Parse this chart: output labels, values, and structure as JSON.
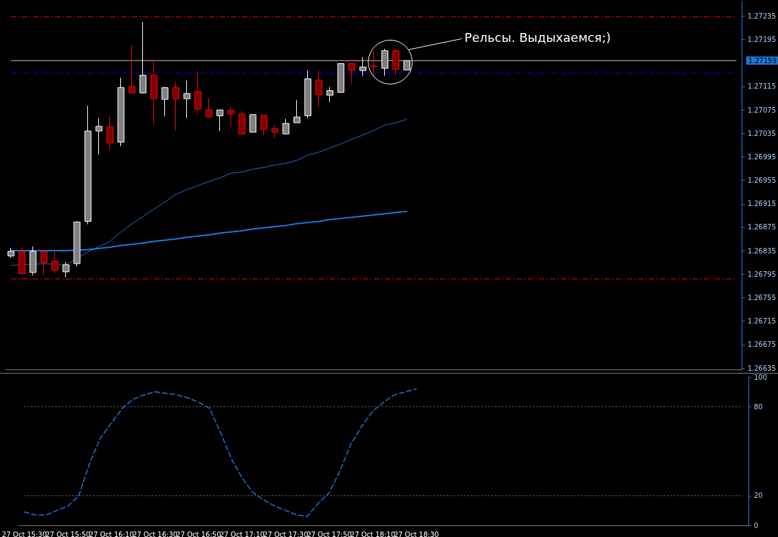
{
  "chart_data": [
    {
      "type": "candlestick",
      "categories": [
        null,
        null,
        null,
        null,
        null,
        null,
        null,
        null,
        null,
        null,
        null,
        null,
        null,
        null,
        null,
        null,
        null,
        null,
        null,
        null,
        null,
        null,
        null,
        null,
        null,
        null,
        null,
        null,
        null,
        null,
        null,
        null,
        null,
        null,
        null,
        null,
        null
      ],
      "series": [
        {
          "type": "candlestick",
          "ohlc": [
            [
              1.26826,
              1.2684,
              1.26823,
              1.26834
            ],
            [
              1.26834,
              1.2684,
              1.26795,
              1.26796
            ],
            [
              1.26798,
              1.26842,
              1.26793,
              1.26834
            ],
            [
              1.26834,
              1.26837,
              1.26793,
              1.26815
            ],
            [
              1.26817,
              1.26833,
              1.26797,
              1.26802
            ],
            [
              1.26799,
              1.26816,
              1.2679,
              1.26811
            ],
            [
              1.26813,
              1.26885,
              1.26808,
              1.26884
            ],
            [
              1.26885,
              1.27082,
              1.2688,
              1.27039
            ],
            [
              1.27039,
              1.27061,
              1.26999,
              1.27047
            ],
            [
              1.27046,
              1.27065,
              1.27008,
              1.27019
            ],
            [
              1.2702,
              1.2713,
              1.27013,
              1.27113
            ],
            [
              1.27115,
              1.27185,
              1.27104,
              1.27104
            ],
            [
              1.27104,
              1.27225,
              1.27103,
              1.27134
            ],
            [
              1.27134,
              1.27159,
              1.27051,
              1.27094
            ],
            [
              1.27093,
              1.27114,
              1.27064,
              1.27113
            ],
            [
              1.27113,
              1.27123,
              1.2704,
              1.27094
            ],
            [
              1.27094,
              1.27125,
              1.27061,
              1.27103
            ],
            [
              1.27106,
              1.27141,
              1.27069,
              1.27077
            ],
            [
              1.27075,
              1.27095,
              1.27063,
              1.27063
            ],
            [
              1.27065,
              1.27075,
              1.27039,
              1.27075
            ],
            [
              1.27074,
              1.27081,
              1.27047,
              1.27068
            ],
            [
              1.27068,
              1.27074,
              1.27034,
              1.27034
            ],
            [
              1.27037,
              1.27068,
              1.27037,
              1.27067
            ],
            [
              1.27066,
              1.27066,
              1.27032,
              1.27042
            ],
            [
              1.27043,
              1.27049,
              1.27027,
              1.27037
            ],
            [
              1.27034,
              1.2706,
              1.27034,
              1.27052
            ],
            [
              1.27053,
              1.27092,
              1.27053,
              1.27063
            ],
            [
              1.27065,
              1.27142,
              1.27061,
              1.27128
            ],
            [
              1.27126,
              1.27142,
              1.2708,
              1.27101
            ],
            [
              1.271,
              1.27114,
              1.27088,
              1.27108
            ],
            [
              1.27105,
              1.27154,
              1.27104,
              1.27154
            ],
            [
              1.27154,
              1.27154,
              1.2712,
              1.27143
            ],
            [
              1.27142,
              1.27165,
              1.27133,
              1.27148
            ],
            [
              1.2715,
              1.27176,
              1.27133,
              1.27149
            ],
            [
              1.27146,
              1.27179,
              1.27133,
              1.27176
            ],
            [
              1.27176,
              1.2718,
              1.27134,
              1.27144
            ],
            [
              1.27143,
              1.27159,
              1.27143,
              1.27159
            ]
          ],
          "colors": [
            "#808080",
            "#800000",
            "#808080",
            "#800000",
            "#800000",
            "#808080",
            "#808080",
            "#808080",
            "#808080",
            "#800000",
            "#808080",
            "#800000",
            "#808080",
            "#800000",
            "#808080",
            "#800000",
            "#808080",
            "#800000",
            "#800000",
            "#808080",
            "#800000",
            "#800000",
            "#808080",
            "#800000",
            "#800000",
            "#808080",
            "#808080",
            "#808080",
            "#800000",
            "#808080",
            "#808080",
            "#800000",
            "#808080",
            "#800000",
            "#808080",
            "#800000",
            "#808080"
          ]
        },
        {
          "type": "line",
          "color": "#1e6fd0",
          "values": [
            1.2681,
            null,
            null,
            1.26813,
            null,
            1.26811,
            null,
            1.26833,
            1.26842,
            1.26851,
            1.26867,
            1.26881,
            1.26893,
            1.26906,
            1.26918,
            1.26931,
            1.26939,
            1.26946,
            1.26953,
            1.26959,
            1.26967,
            1.26969,
            1.26974,
            1.26977,
            1.26981,
            1.26984,
            1.26989,
            1.26998,
            1.27003,
            1.2701,
            1.27017,
            1.27025,
            1.27032,
            1.2704,
            1.27049,
            1.27053,
            1.27059
          ]
        },
        {
          "type": "line",
          "color": "#1a7ae0",
          "values": [
            1.26835,
            1.26835,
            1.26835,
            1.26835,
            1.26835,
            1.26835,
            null,
            1.26837,
            1.26839,
            1.26841,
            1.26844,
            1.26846,
            1.26848,
            1.26851,
            1.26853,
            1.26855,
            1.26858,
            1.2686,
            1.26862,
            1.26865,
            1.26867,
            1.26869,
            1.26872,
            1.26874,
            1.26876,
            1.26878,
            1.26881,
            1.26883,
            1.26885,
            1.26888,
            1.2689,
            1.26892,
            1.26894,
            1.26896,
            1.26898,
            1.269,
            1.26902
          ]
        }
      ],
      "ylim": [
        1.26632,
        1.2726
      ],
      "yticks": [
        1.26635,
        1.26675,
        1.26715,
        1.26755,
        1.26795,
        1.26835,
        1.26875,
        1.26915,
        1.26955,
        1.26995,
        1.27035,
        1.27075,
        1.27115,
        1.27195,
        1.27235
      ],
      "ref_lines": [
        {
          "axis": "y",
          "value": 1.27234,
          "color": "#ff0000",
          "line_style": "dashed"
        },
        {
          "axis": "y",
          "value": 1.26787,
          "color": "#ff0000",
          "line_style": "dashed"
        },
        {
          "axis": "y",
          "value": 1.27138,
          "color": "#0000ff",
          "line_style": "dashed"
        },
        {
          "axis": "y",
          "value": 1.27159,
          "color": "#c0c0c0",
          "line_style": "solid",
          "label": "1.27159"
        }
      ],
      "annotations": [
        "Рельсы. Выдыхаемся;)"
      ],
      "tick_labels": "y"
    },
    {
      "type": "line",
      "categories": [
        "27 Oct 15:30",
        null,
        null,
        null,
        "27 Oct 15:50",
        null,
        null,
        null,
        "27 Oct 16:10",
        null,
        null,
        null,
        "27 Oct 16:30",
        null,
        null,
        null,
        "27 Oct 16:50",
        null,
        null,
        null,
        "27 Oct 17:10",
        null,
        null,
        null,
        "27 Oct 17:30",
        null,
        null,
        null,
        "27 Oct 17:50",
        null,
        null,
        null,
        "27 Oct 18:10",
        null,
        null,
        null,
        "27 Oct 18:30"
      ],
      "series": [
        {
          "color": "#1e78d7",
          "values": [
            9,
            7,
            7,
            10,
            13,
            20,
            42,
            59,
            69,
            79,
            85,
            88,
            90,
            89,
            88,
            86,
            83,
            79,
            63,
            45,
            32,
            22,
            17,
            13,
            10,
            7,
            6,
            15,
            22,
            37,
            55,
            67,
            77,
            83,
            88,
            90,
            92
          ]
        }
      ],
      "line_style": "dashed",
      "ylim": [
        0,
        100
      ],
      "yticks": [
        0,
        20,
        80,
        100
      ],
      "ref_lines": [
        {
          "axis": "y",
          "value": 80,
          "color": "#808080",
          "line_style": "dotted"
        },
        {
          "axis": "y",
          "value": 20,
          "color": "#808080",
          "line_style": "dotted"
        }
      ]
    }
  ]
}
